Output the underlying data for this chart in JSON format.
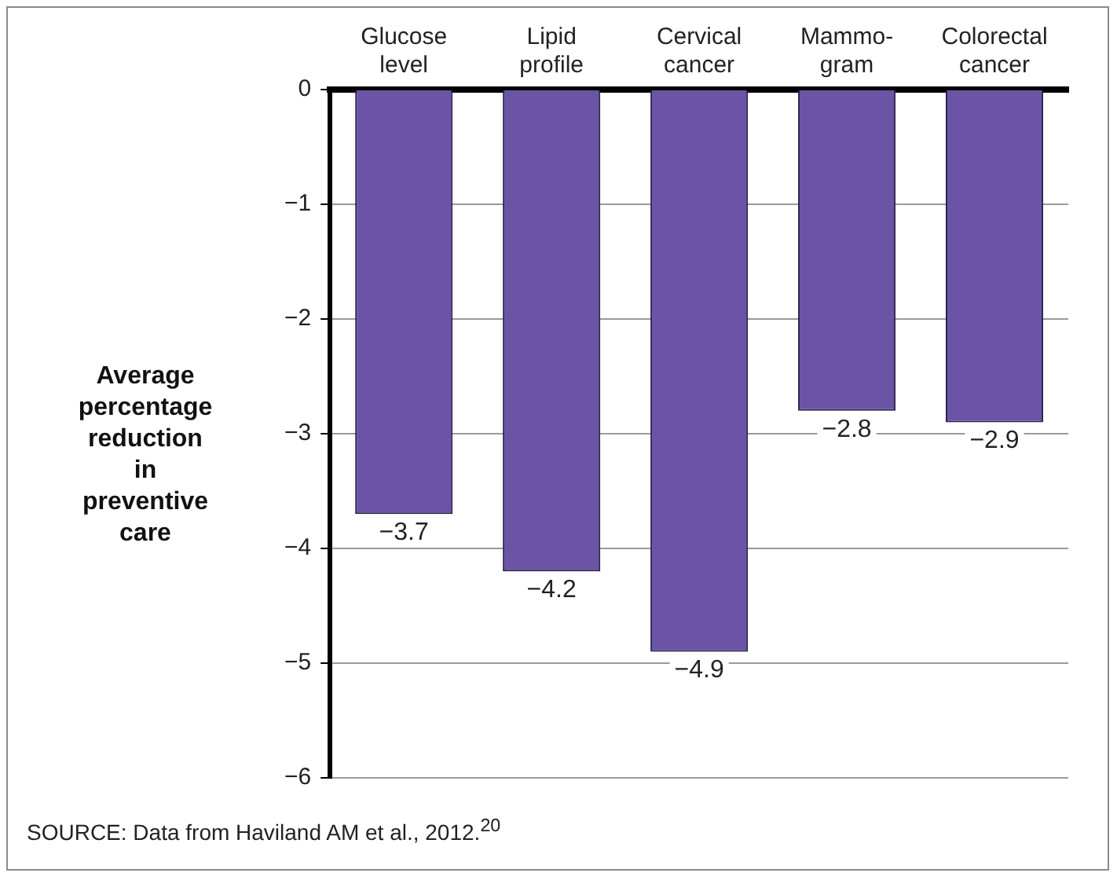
{
  "chart_data": {
    "type": "bar",
    "ylabel": "Average percentage reduction in preventive care",
    "categories": [
      "Glucose\nlevel",
      "Lipid\nprofile",
      "Cervical\ncancer",
      "Mammo-\ngram",
      "Colorectal\ncancer"
    ],
    "values": [
      -3.7,
      -4.2,
      -4.9,
      -2.8,
      -2.9
    ],
    "value_labels": [
      "−3.7",
      "−4.2",
      "−4.9",
      "−2.8",
      "−2.9"
    ],
    "color": "#6b54a5",
    "ylim": [
      -6,
      0
    ],
    "yticks": [
      {
        "value": -6,
        "label": "−6"
      },
      {
        "value": -5,
        "label": "−5"
      },
      {
        "value": -4,
        "label": "−4"
      },
      {
        "value": -3,
        "label": "−3"
      },
      {
        "value": -2,
        "label": "−2"
      },
      {
        "value": -1,
        "label": "−1"
      },
      0
    ],
    "grid": "y",
    "legend": false,
    "annotations": [
      "SOURCE: Data from Haviland AM et al., 2012.$^{20}$"
    ]
  }
}
